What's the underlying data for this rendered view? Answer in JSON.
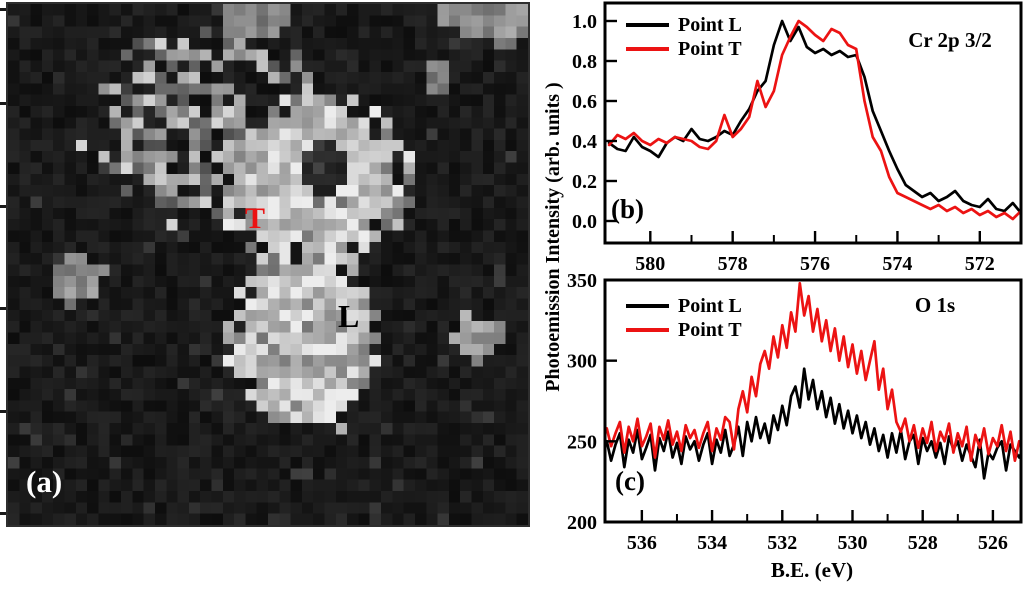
{
  "figure": {
    "background": "#ffffff",
    "accent_red": "#ec1313",
    "axis_color": "#000000",
    "noise_seed": 11
  },
  "panel_a": {
    "label": "(a)",
    "marker_t": "T",
    "marker_l": "L"
  },
  "ylabel": "Photoemission Intensity (arb. units )",
  "xlabel": "B.E. (eV)",
  "chart_data": [
    {
      "id": "cr2p",
      "type": "line",
      "panel_label": "(b)",
      "annotation": "Cr 2p 3/2",
      "legend_position": "top-left",
      "grid": false,
      "x_axis": {
        "label": "B.E. (eV)",
        "ticks": [
          580,
          578,
          576,
          574,
          572
        ],
        "tick_labels": [
          "580",
          "578",
          "576",
          "574",
          "572"
        ],
        "minor_ticks": [
          579,
          577,
          575,
          573,
          571
        ],
        "range_display": [
          581.1,
          571.0
        ],
        "reversed": true
      },
      "y_axis": {
        "label": "Photoemission Intensity (arb. units )",
        "ticks": [
          1.0,
          0.8,
          0.6,
          0.4,
          0.2,
          0.0
        ],
        "tick_labels": [
          "1.0",
          "0.8",
          "0.6",
          "0.4",
          "0.2",
          "0.0"
        ],
        "range": [
          -0.11,
          1.09
        ]
      },
      "series": [
        {
          "name": "Point L",
          "color": "#000000",
          "x_start": 581.0,
          "x_step": -0.2,
          "y": [
            0.39,
            0.36,
            0.35,
            0.42,
            0.37,
            0.35,
            0.32,
            0.39,
            0.42,
            0.4,
            0.46,
            0.41,
            0.4,
            0.42,
            0.45,
            0.43,
            0.5,
            0.56,
            0.65,
            0.7,
            0.88,
            1.0,
            0.9,
            0.97,
            0.87,
            0.84,
            0.86,
            0.83,
            0.85,
            0.82,
            0.83,
            0.72,
            0.55,
            0.45,
            0.35,
            0.26,
            0.18,
            0.15,
            0.12,
            0.14,
            0.1,
            0.12,
            0.15,
            0.1,
            0.08,
            0.07,
            0.11,
            0.06,
            0.05,
            0.09,
            0.04
          ]
        },
        {
          "name": "Point T",
          "color": "#ec1313",
          "x_start": 581.0,
          "x_step": -0.2,
          "y": [
            0.38,
            0.43,
            0.41,
            0.44,
            0.4,
            0.38,
            0.41,
            0.39,
            0.42,
            0.41,
            0.4,
            0.37,
            0.36,
            0.4,
            0.53,
            0.42,
            0.46,
            0.52,
            0.7,
            0.57,
            0.65,
            0.83,
            0.92,
            1.0,
            0.97,
            0.93,
            0.9,
            0.96,
            0.94,
            0.88,
            0.86,
            0.6,
            0.42,
            0.35,
            0.22,
            0.14,
            0.12,
            0.1,
            0.08,
            0.06,
            0.08,
            0.05,
            0.07,
            0.04,
            0.06,
            0.03,
            0.05,
            0.02,
            0.04,
            0.01,
            0.05
          ]
        }
      ]
    },
    {
      "id": "o1s",
      "type": "line",
      "panel_label": "(c)",
      "annotation": "O 1s",
      "legend_position": "top-left",
      "grid": false,
      "x_axis": {
        "label": "B.E. (eV)",
        "ticks": [
          536,
          534,
          532,
          530,
          528,
          526
        ],
        "tick_labels": [
          "536",
          "534",
          "532",
          "530",
          "528",
          "526"
        ],
        "minor_ticks": [
          535,
          533,
          531,
          529,
          527
        ],
        "range_display": [
          537.05,
          525.2
        ],
        "reversed": true
      },
      "y_axis": {
        "label": "Photoemission Intensity (arb. units )",
        "ticks": [
          350,
          300,
          250,
          200
        ],
        "tick_labels": [
          "350",
          "300",
          "250",
          "200"
        ],
        "range": [
          200,
          350
        ]
      },
      "series": [
        {
          "name": "Point L",
          "color": "#000000",
          "x_start": 537.0,
          "x_step": -0.125,
          "y": [
            250,
            238,
            248,
            255,
            234,
            251,
            243,
            257,
            239,
            246,
            254,
            232,
            252,
            244,
            256,
            240,
            249,
            236,
            253,
            245,
            250,
            238,
            248,
            255,
            236,
            251,
            243,
            257,
            241,
            248,
            259,
            241,
            262,
            250,
            265,
            252,
            261,
            249,
            266,
            257,
            272,
            260,
            278,
            284,
            271,
            295,
            276,
            288,
            270,
            281,
            265,
            277,
            261,
            273,
            258,
            269,
            255,
            266,
            252,
            262,
            248,
            258,
            244,
            254,
            240,
            255,
            243,
            257,
            239,
            250,
            254,
            236,
            252,
            244,
            250,
            240,
            249,
            236,
            253,
            245,
            250,
            238,
            248,
            241,
            234,
            251,
            227,
            243,
            239,
            246,
            250,
            232,
            248,
            244,
            240,
            246,
            238
          ]
        },
        {
          "name": "Point T",
          "color": "#ec1313",
          "x_start": 537.0,
          "x_step": -0.125,
          "y": [
            258,
            247,
            255,
            262,
            243,
            259,
            250,
            264,
            247,
            253,
            261,
            240,
            259,
            251,
            263,
            248,
            256,
            244,
            260,
            252,
            257,
            246,
            255,
            262,
            244,
            258,
            251,
            265,
            262,
            245,
            270,
            281,
            268,
            290,
            278,
            298,
            306,
            295,
            315,
            302,
            322,
            308,
            330,
            318,
            348,
            328,
            340,
            318,
            332,
            312,
            325,
            306,
            320,
            300,
            315,
            296,
            310,
            292,
            306,
            288,
            300,
            312,
            282,
            295,
            270,
            282,
            262,
            256,
            264,
            250,
            260,
            246,
            258,
            249,
            262,
            244,
            256,
            250,
            261,
            243,
            255,
            247,
            259,
            238,
            254,
            246,
            258,
            242,
            252,
            247,
            260,
            244,
            256,
            238,
            250,
            245,
            253
          ]
        }
      ]
    }
  ]
}
